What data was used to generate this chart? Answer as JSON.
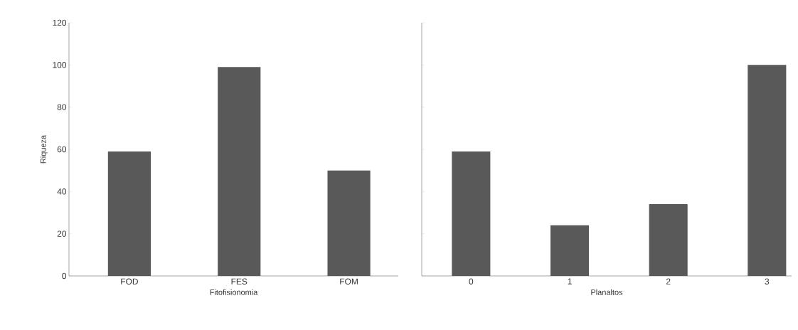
{
  "chart_data": [
    {
      "type": "bar",
      "xlabel": "Fitofisionomia",
      "ylabel": "Riqueza",
      "categories": [
        "FOD",
        "FES",
        "FOM"
      ],
      "values": [
        59,
        99,
        50
      ],
      "color": "#595959",
      "ylim": [
        0,
        120
      ],
      "yticks": [
        0,
        20,
        40,
        60,
        80,
        100,
        120
      ]
    },
    {
      "type": "bar",
      "xlabel": "Planaltos",
      "categories": [
        "0",
        "1",
        "2",
        "3"
      ],
      "values": [
        59,
        24,
        34,
        100
      ],
      "color": "#595959",
      "ylim": [
        0,
        120
      ],
      "yticks": [
        0,
        20,
        40,
        60,
        80,
        100,
        120
      ],
      "tick_labels": "x"
    }
  ]
}
